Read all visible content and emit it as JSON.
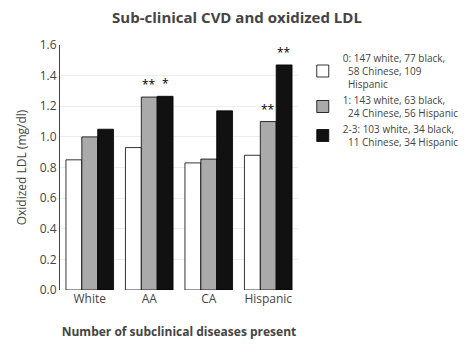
{
  "chart_data": {
    "type": "bar",
    "title": "Sub-clinical CVD and oxidized LDL",
    "x_label": "Number of subclinical diseases present",
    "y_label": "Oxidized LDL (mg/dl)",
    "categories": [
      "White",
      "AA",
      "CA",
      "Hispanic"
    ],
    "series": [
      {
        "name": "0: 147 white, 77 black,\n  58 Chinese, 109\n  Hispanic",
        "color": "#ffffff",
        "values": [
          0.85,
          0.93,
          0.83,
          0.88
        ]
      },
      {
        "name": "1: 143 white, 63 black,\n  24 Chinese, 56 Hispanic",
        "color": "#aaaaaa",
        "values": [
          1.0,
          1.26,
          0.855,
          1.1
        ]
      },
      {
        "name": "2-3: 103 white, 34 black,\n  11 Chinese, 34 Hispanic",
        "color": "#111111",
        "values": [
          1.05,
          1.265,
          1.17,
          1.47
        ]
      }
    ],
    "ylim": [
      0,
      1.6
    ],
    "yticks": [
      {
        "value": 0,
        "label": "0.0"
      },
      0.2,
      0.4,
      0.6,
      0.8,
      {
        "value": 1,
        "label": "1.0"
      },
      1.2,
      1.4,
      1.6
    ],
    "annotations": [
      {
        "text": "**",
        "category": "AA",
        "series": "1: 143 white, 63 black,\n  24 Chinese, 56 Hispanic"
      },
      {
        "text": "*",
        "category": "AA",
        "series": "2-3: 103 white, 34 black,\n  11 Chinese, 34 Hispanic"
      },
      {
        "text": "**",
        "category": "Hispanic",
        "series": "1: 143 white, 63 black,\n  24 Chinese, 56 Hispanic"
      },
      {
        "text": "**",
        "category": "Hispanic",
        "series": "2-3: 103 white, 34 black,\n  11 Chinese, 34 Hispanic"
      }
    ],
    "grid": true,
    "legend": "right"
  }
}
